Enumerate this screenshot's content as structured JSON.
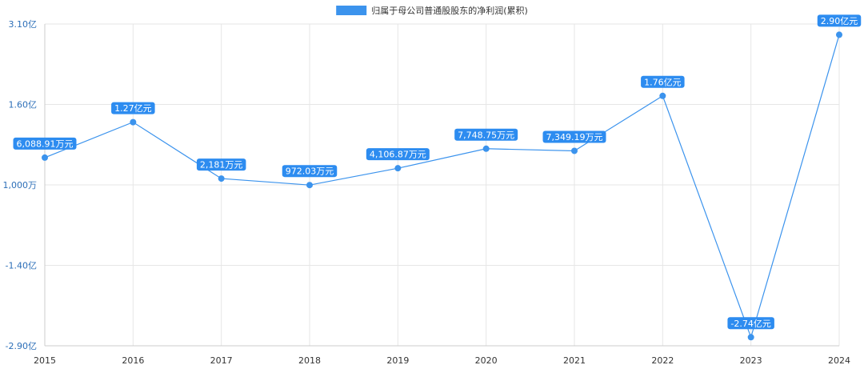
{
  "colors": {
    "series": "#3b93ed",
    "label_bg": "#2d8cf0",
    "label_text": "#ffffff",
    "grid": "#e6e6e6",
    "tick_text": "#2d6fb8",
    "xtick_text": "#333333",
    "legend_text": "#333333"
  },
  "chart_data": {
    "type": "line",
    "legend": {
      "position": "top-center"
    },
    "grid": true,
    "x": [
      "2015",
      "2016",
      "2017",
      "2018",
      "2019",
      "2020",
      "2021",
      "2022",
      "2023",
      "2024"
    ],
    "ylim": [
      -2.9,
      3.1
    ],
    "y_unit": "亿",
    "y_ticks": [
      {
        "value": 3.1,
        "label": "3.10亿"
      },
      {
        "value": 1.6,
        "label": "1.60亿"
      },
      {
        "value": 0.1,
        "label": "1,000万"
      },
      {
        "value": -1.4,
        "label": "-1.40亿"
      },
      {
        "value": -2.9,
        "label": "-2.90亿"
      }
    ],
    "series": [
      {
        "name": "归属于母公司普通股股东的净利润(累积)",
        "values": [
          0.6089,
          1.27,
          0.2181,
          0.0972,
          0.4107,
          0.7749,
          0.7349,
          1.76,
          -2.74,
          2.9
        ],
        "labels": [
          "6,088.91万元",
          "1.27亿元",
          "2,181万元",
          "972.03万元",
          "4,106.87万元",
          "7,748.75万元",
          "7,349.19万元",
          "1.76亿元",
          "-2.74亿元",
          "2.90亿元"
        ]
      }
    ]
  }
}
